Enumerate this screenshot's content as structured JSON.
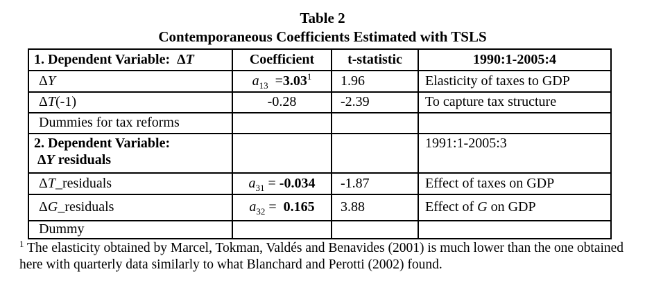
{
  "page": {
    "title": "Table 2",
    "subtitle": "Contemporaneous Coefficients Estimated with TSLS"
  },
  "table": {
    "column_headers": [
      "1. Dependent Variable: ΔT",
      "Coefficient",
      "t-statistic",
      "1990:1-2005:4"
    ],
    "rows": [
      {
        "cells": [
          {
            "runs": [
              {
                "t": "1. Dependent Variable:  ",
                "b": true
              },
              {
                "t": "Δ",
                "b": true
              },
              {
                "t": "T",
                "b": true,
                "i": true
              }
            ]
          },
          {
            "runs": [
              {
                "t": "Coefficient",
                "b": true
              }
            ]
          },
          {
            "runs": [
              {
                "t": "t-statistic",
                "b": true
              }
            ]
          },
          {
            "runs": [
              {
                "t": "1990:1-2005:4",
                "b": true
              }
            ]
          }
        ]
      },
      {
        "cells": [
          {
            "runs": [
              {
                "t": "Δ"
              },
              {
                "t": "Y",
                "i": true
              }
            ]
          },
          {
            "runs": [
              {
                "t": "a",
                "i": true
              },
              {
                "t": "13",
                "sub": true
              },
              {
                "t": "  ="
              },
              {
                "t": "3.03",
                "b": true
              },
              {
                "t": "1",
                "sup": true
              }
            ]
          },
          {
            "runs": [
              {
                "t": "1.96"
              }
            ]
          },
          {
            "runs": [
              {
                "t": "Elasticity of taxes to GDP"
              }
            ]
          }
        ]
      },
      {
        "cells": [
          {
            "runs": [
              {
                "t": "Δ"
              },
              {
                "t": "T",
                "i": true
              },
              {
                "t": "(-1)"
              }
            ]
          },
          {
            "runs": [
              {
                "t": "-0.28"
              }
            ]
          },
          {
            "runs": [
              {
                "t": "-2.39"
              }
            ]
          },
          {
            "runs": [
              {
                "t": "To capture tax structure"
              }
            ]
          }
        ]
      },
      {
        "cells": [
          {
            "runs": [
              {
                "t": "Dummies for tax reforms"
              }
            ]
          },
          {
            "runs": []
          },
          {
            "runs": []
          },
          {
            "runs": []
          }
        ]
      },
      {
        "cells": [
          {
            "runs": [
              {
                "t": "2. Dependent Variable:",
                "b": true
              },
              {
                "br": true
              },
              {
                "t": " ",
                "b": true
              },
              {
                "t": "Δ",
                "b": true
              },
              {
                "t": "Y",
                "b": true,
                "i": true
              },
              {
                "t": " residuals",
                "b": true
              }
            ]
          },
          {
            "runs": []
          },
          {
            "runs": []
          },
          {
            "runs": [
              {
                "t": "1991:1-2005:3"
              }
            ]
          }
        ]
      },
      {
        "cells": [
          {
            "runs": [
              {
                "t": "Δ"
              },
              {
                "t": "T",
                "i": true
              },
              {
                "t": "_residuals"
              }
            ]
          },
          {
            "runs": [
              {
                "t": "a",
                "i": true
              },
              {
                "t": "31",
                "sub": true
              },
              {
                "t": " = "
              },
              {
                "t": "-0.034",
                "b": true
              }
            ]
          },
          {
            "runs": [
              {
                "t": "-1.87"
              }
            ]
          },
          {
            "runs": [
              {
                "t": "Effect of taxes on GDP"
              }
            ]
          }
        ]
      },
      {
        "cells": [
          {
            "runs": [
              {
                "t": "Δ"
              },
              {
                "t": "G",
                "i": true
              },
              {
                "t": "_residuals"
              }
            ]
          },
          {
            "runs": [
              {
                "t": "a",
                "i": true
              },
              {
                "t": "32",
                "sub": true
              },
              {
                "t": " =  "
              },
              {
                "t": "0.165",
                "b": true
              }
            ]
          },
          {
            "runs": [
              {
                "t": "3.88"
              }
            ]
          },
          {
            "runs": [
              {
                "t": "Effect of "
              },
              {
                "t": "G",
                "i": true
              },
              {
                "t": " on GDP"
              }
            ]
          }
        ]
      },
      {
        "cells": [
          {
            "runs": [
              {
                "t": "Dummy"
              }
            ]
          },
          {
            "runs": []
          },
          {
            "runs": []
          },
          {
            "runs": []
          }
        ]
      }
    ]
  },
  "footnote": {
    "runs": [
      {
        "t": "1",
        "sup": true
      },
      {
        "t": " The elasticity obtained by Marcel, Tokman, Valdés and Benavides (2001) is much lower than the one obtained here with quarterly data similarly to what Blanchard and Perotti (2002) found."
      }
    ]
  },
  "colors": {
    "text": "#000000",
    "border": "#000000",
    "background": "#ffffff"
  }
}
